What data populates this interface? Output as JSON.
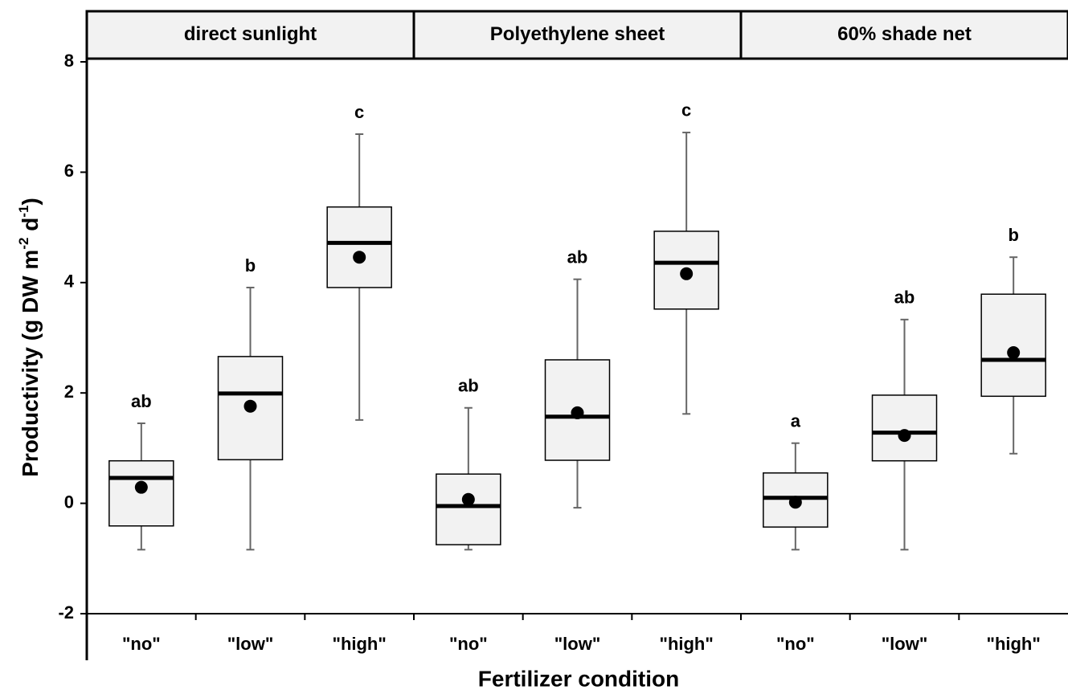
{
  "chart_data": {
    "type": "box",
    "ylabel": [
      "Productivity (g DW m",
      "-2",
      " d",
      "-1",
      ")"
    ],
    "xlabel": "Fertilizer condition",
    "ylim": [
      -2,
      8
    ],
    "yticks": [
      -2,
      0,
      2,
      4,
      6,
      8
    ],
    "box_color": "#f2f2f2",
    "panels": [
      {
        "name": "direct sunlight",
        "categories": [
          "\"no\"",
          "\"low\"",
          "\"high\""
        ],
        "boxes": [
          {
            "whisker_low": -0.84,
            "q1": -0.41,
            "median": 0.46,
            "q3": 0.77,
            "whisker_high": 1.45,
            "mean": 0.29,
            "label": "ab"
          },
          {
            "whisker_low": -0.84,
            "q1": 0.79,
            "median": 1.99,
            "q3": 2.66,
            "whisker_high": 3.91,
            "mean": 1.76,
            "label": "b"
          },
          {
            "whisker_low": 1.51,
            "q1": 3.91,
            "median": 4.72,
            "q3": 5.37,
            "whisker_high": 6.69,
            "mean": 4.46,
            "label": "c"
          }
        ]
      },
      {
        "name": "Polyethylene sheet",
        "categories": [
          "\"no\"",
          "\"low\"",
          "\"high\""
        ],
        "boxes": [
          {
            "whisker_low": -0.84,
            "q1": -0.75,
            "median": -0.05,
            "q3": 0.53,
            "whisker_high": 1.73,
            "mean": 0.07,
            "label": "ab"
          },
          {
            "whisker_low": -0.08,
            "q1": 0.78,
            "median": 1.57,
            "q3": 2.6,
            "whisker_high": 4.06,
            "mean": 1.64,
            "label": "ab"
          },
          {
            "whisker_low": 1.62,
            "q1": 3.52,
            "median": 4.36,
            "q3": 4.93,
            "whisker_high": 6.72,
            "mean": 4.16,
            "label": "c"
          }
        ]
      },
      {
        "name": "60% shade net",
        "categories": [
          "\"no\"",
          "\"low\"",
          "\"high\""
        ],
        "boxes": [
          {
            "whisker_low": -0.84,
            "q1": -0.43,
            "median": 0.1,
            "q3": 0.55,
            "whisker_high": 1.09,
            "mean": 0.02,
            "label": "a"
          },
          {
            "whisker_low": -0.84,
            "q1": 0.77,
            "median": 1.28,
            "q3": 1.96,
            "whisker_high": 3.33,
            "mean": 1.23,
            "label": "ab"
          },
          {
            "whisker_low": 0.9,
            "q1": 1.94,
            "median": 2.6,
            "q3": 3.79,
            "whisker_high": 4.46,
            "mean": 2.73,
            "label": "b"
          }
        ]
      }
    ]
  }
}
